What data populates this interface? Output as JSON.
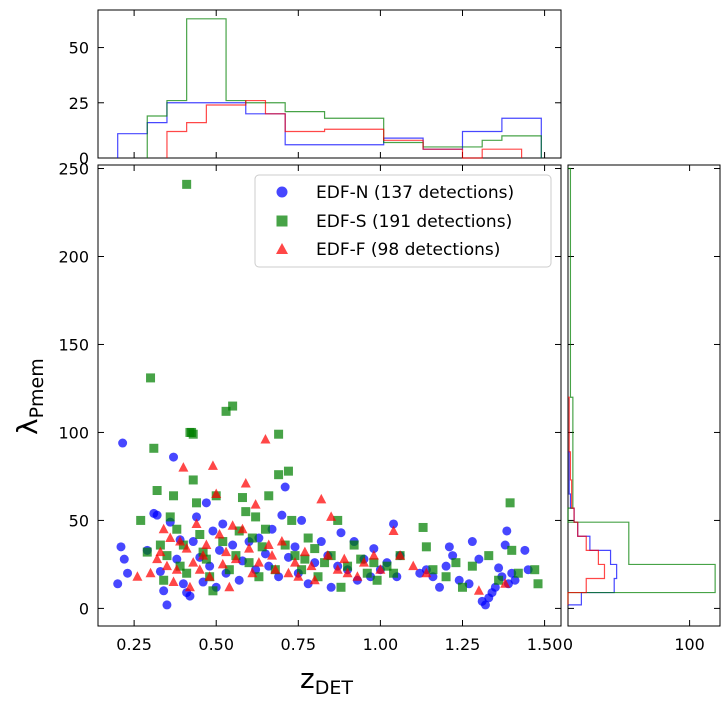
{
  "chart_data": {
    "type": "scatter",
    "xlabel": "z",
    "xlabel_sub": "DET",
    "ylabel": "λ",
    "ylabel_sub": "Pmem",
    "xlim": [
      0.14,
      1.55
    ],
    "ylim": [
      -10,
      252
    ],
    "xticks": [
      0.25,
      0.5,
      0.75,
      1.0,
      1.25,
      1.5
    ],
    "xtick_labels": [
      "0.25",
      "0.50",
      "0.75",
      "1.00",
      "1.25",
      "1.50"
    ],
    "yticks": [
      0,
      50,
      100,
      150,
      200,
      250
    ],
    "ytick_labels": [
      "0",
      "50",
      "100",
      "150",
      "200",
      "250"
    ],
    "legend_position": "top-right",
    "series": [
      {
        "name": "EDF-N (137 detections)",
        "color": "#0000ff",
        "marker": "circle",
        "points": [
          [
            0.2,
            14
          ],
          [
            0.21,
            35
          ],
          [
            0.215,
            94
          ],
          [
            0.22,
            28
          ],
          [
            0.23,
            20
          ],
          [
            0.29,
            33
          ],
          [
            0.31,
            54
          ],
          [
            0.32,
            53
          ],
          [
            0.33,
            21
          ],
          [
            0.34,
            10
          ],
          [
            0.35,
            2
          ],
          [
            0.36,
            49
          ],
          [
            0.37,
            86
          ],
          [
            0.38,
            28
          ],
          [
            0.39,
            39
          ],
          [
            0.4,
            14
          ],
          [
            0.41,
            9
          ],
          [
            0.42,
            7
          ],
          [
            0.43,
            38
          ],
          [
            0.44,
            52
          ],
          [
            0.45,
            29
          ],
          [
            0.46,
            15
          ],
          [
            0.47,
            60
          ],
          [
            0.48,
            24
          ],
          [
            0.49,
            44
          ],
          [
            0.5,
            12
          ],
          [
            0.51,
            33
          ],
          [
            0.52,
            48
          ],
          [
            0.53,
            20
          ],
          [
            0.55,
            36
          ],
          [
            0.57,
            16
          ],
          [
            0.58,
            27
          ],
          [
            0.6,
            38
          ],
          [
            0.62,
            22
          ],
          [
            0.63,
            40
          ],
          [
            0.65,
            31
          ],
          [
            0.66,
            24
          ],
          [
            0.67,
            45
          ],
          [
            0.69,
            18
          ],
          [
            0.7,
            53
          ],
          [
            0.71,
            69
          ],
          [
            0.72,
            29
          ],
          [
            0.74,
            35
          ],
          [
            0.75,
            20
          ],
          [
            0.76,
            50
          ],
          [
            0.78,
            14
          ],
          [
            0.8,
            26
          ],
          [
            0.82,
            38
          ],
          [
            0.84,
            30
          ],
          [
            0.85,
            12
          ],
          [
            0.87,
            24
          ],
          [
            0.88,
            43
          ],
          [
            0.9,
            22
          ],
          [
            0.92,
            38
          ],
          [
            0.93,
            16
          ],
          [
            0.95,
            28
          ],
          [
            0.97,
            18
          ],
          [
            0.98,
            34
          ],
          [
            1.0,
            22
          ],
          [
            1.02,
            26
          ],
          [
            1.04,
            48
          ],
          [
            1.05,
            18
          ],
          [
            1.06,
            30
          ],
          [
            1.12,
            20
          ],
          [
            1.14,
            22
          ],
          [
            1.16,
            18
          ],
          [
            1.18,
            12
          ],
          [
            1.2,
            24
          ],
          [
            1.21,
            35
          ],
          [
            1.22,
            30
          ],
          [
            1.24,
            16
          ],
          [
            1.27,
            14
          ],
          [
            1.28,
            38
          ],
          [
            1.3,
            28
          ],
          [
            1.31,
            4
          ],
          [
            1.32,
            2
          ],
          [
            1.33,
            6
          ],
          [
            1.34,
            9
          ],
          [
            1.35,
            12
          ],
          [
            1.36,
            23
          ],
          [
            1.37,
            18
          ],
          [
            1.38,
            36
          ],
          [
            1.385,
            44
          ],
          [
            1.39,
            14
          ],
          [
            1.4,
            20
          ],
          [
            1.41,
            16
          ],
          [
            1.44,
            33
          ],
          [
            1.45,
            22
          ]
        ]
      },
      {
        "name": "EDF-S (191 detections)",
        "color": "#008000",
        "marker": "square",
        "points": [
          [
            0.27,
            50
          ],
          [
            0.29,
            32
          ],
          [
            0.3,
            131
          ],
          [
            0.31,
            91
          ],
          [
            0.32,
            67
          ],
          [
            0.33,
            36
          ],
          [
            0.34,
            16
          ],
          [
            0.35,
            30
          ],
          [
            0.36,
            52
          ],
          [
            0.37,
            64
          ],
          [
            0.38,
            45
          ],
          [
            0.39,
            24
          ],
          [
            0.4,
            36
          ],
          [
            0.41,
            241
          ],
          [
            0.41,
            20
          ],
          [
            0.42,
            100
          ],
          [
            0.425,
            100
          ],
          [
            0.43,
            99
          ],
          [
            0.43,
            73
          ],
          [
            0.44,
            60
          ],
          [
            0.45,
            42
          ],
          [
            0.46,
            32
          ],
          [
            0.47,
            28
          ],
          [
            0.48,
            18
          ],
          [
            0.49,
            10
          ],
          [
            0.5,
            64
          ],
          [
            0.52,
            38
          ],
          [
            0.53,
            112
          ],
          [
            0.54,
            22
          ],
          [
            0.55,
            115
          ],
          [
            0.56,
            30
          ],
          [
            0.57,
            44
          ],
          [
            0.58,
            63
          ],
          [
            0.59,
            55
          ],
          [
            0.6,
            26
          ],
          [
            0.61,
            40
          ],
          [
            0.62,
            52
          ],
          [
            0.63,
            18
          ],
          [
            0.64,
            35
          ],
          [
            0.65,
            45
          ],
          [
            0.66,
            64
          ],
          [
            0.68,
            22
          ],
          [
            0.69,
            99
          ],
          [
            0.69,
            76
          ],
          [
            0.71,
            36
          ],
          [
            0.72,
            78
          ],
          [
            0.73,
            50
          ],
          [
            0.74,
            30
          ],
          [
            0.76,
            22
          ],
          [
            0.77,
            28
          ],
          [
            0.78,
            40
          ],
          [
            0.8,
            34
          ],
          [
            0.81,
            18
          ],
          [
            0.83,
            26
          ],
          [
            0.85,
            30
          ],
          [
            0.87,
            50
          ],
          [
            0.88,
            12
          ],
          [
            0.9,
            24
          ],
          [
            0.92,
            36
          ],
          [
            0.94,
            28
          ],
          [
            0.96,
            20
          ],
          [
            0.98,
            26
          ],
          [
            0.99,
            16
          ],
          [
            1.02,
            24
          ],
          [
            1.04,
            20
          ],
          [
            1.06,
            30
          ],
          [
            1.13,
            46
          ],
          [
            1.14,
            35
          ],
          [
            1.16,
            22
          ],
          [
            1.2,
            18
          ],
          [
            1.23,
            26
          ],
          [
            1.25,
            12
          ],
          [
            1.28,
            24
          ],
          [
            1.33,
            30
          ],
          [
            1.36,
            16
          ],
          [
            1.395,
            60
          ],
          [
            1.4,
            33
          ],
          [
            1.42,
            20
          ],
          [
            1.47,
            22
          ],
          [
            1.48,
            14
          ]
        ]
      },
      {
        "name": "EDF-F (98 detections)",
        "color": "#ff0000",
        "marker": "triangle",
        "points": [
          [
            0.26,
            18
          ],
          [
            0.3,
            20
          ],
          [
            0.32,
            28
          ],
          [
            0.33,
            32
          ],
          [
            0.34,
            45
          ],
          [
            0.35,
            24
          ],
          [
            0.36,
            40
          ],
          [
            0.37,
            15
          ],
          [
            0.38,
            22
          ],
          [
            0.39,
            38
          ],
          [
            0.4,
            80
          ],
          [
            0.41,
            34
          ],
          [
            0.42,
            12
          ],
          [
            0.43,
            26
          ],
          [
            0.44,
            48
          ],
          [
            0.45,
            22
          ],
          [
            0.46,
            30
          ],
          [
            0.47,
            36
          ],
          [
            0.48,
            18
          ],
          [
            0.49,
            81
          ],
          [
            0.5,
            65
          ],
          [
            0.51,
            42
          ],
          [
            0.52,
            25
          ],
          [
            0.53,
            32
          ],
          [
            0.54,
            12
          ],
          [
            0.55,
            47
          ],
          [
            0.56,
            28
          ],
          [
            0.58,
            45
          ],
          [
            0.59,
            71
          ],
          [
            0.6,
            34
          ],
          [
            0.61,
            20
          ],
          [
            0.62,
            59
          ],
          [
            0.63,
            26
          ],
          [
            0.65,
            96
          ],
          [
            0.66,
            36
          ],
          [
            0.67,
            30
          ],
          [
            0.68,
            22
          ],
          [
            0.7,
            38
          ],
          [
            0.72,
            20
          ],
          [
            0.74,
            26
          ],
          [
            0.75,
            18
          ],
          [
            0.77,
            32
          ],
          [
            0.79,
            24
          ],
          [
            0.8,
            16
          ],
          [
            0.82,
            62
          ],
          [
            0.84,
            30
          ],
          [
            0.85,
            52
          ],
          [
            0.87,
            22
          ],
          [
            0.89,
            28
          ],
          [
            0.9,
            20
          ],
          [
            0.93,
            18
          ],
          [
            0.95,
            26
          ],
          [
            0.98,
            30
          ],
          [
            1.0,
            22
          ],
          [
            1.04,
            44
          ],
          [
            1.06,
            30
          ],
          [
            1.1,
            24
          ],
          [
            1.14,
            20
          ],
          [
            1.3,
            10
          ],
          [
            1.38,
            14
          ]
        ]
      }
    ],
    "top_histogram": {
      "yticks": [
        0,
        25,
        50
      ],
      "ytick_labels": [
        "0",
        "25",
        "50"
      ],
      "ylim": [
        0,
        67
      ],
      "bins": [
        0.2,
        0.29,
        0.35,
        0.41,
        0.47,
        0.53,
        0.59,
        0.65,
        0.71,
        0.77,
        0.83,
        0.89,
        0.95,
        1.01,
        1.07,
        1.13,
        1.19,
        1.25,
        1.31,
        1.37,
        1.43,
        1.49
      ],
      "counts": {
        "EDF-N (137 detections)": [
          11,
          16,
          25,
          25,
          25,
          25,
          20,
          20,
          6,
          6,
          6,
          6,
          6,
          9,
          9,
          4,
          4,
          12,
          12,
          18,
          18
        ],
        "EDF-S (191 detections)": [
          0,
          19,
          26,
          63,
          63,
          26,
          25,
          25,
          21,
          21,
          18,
          18,
          18,
          7,
          7,
          5,
          5,
          5,
          8,
          10,
          10
        ],
        "EDF-F (98 detections)": [
          0,
          0,
          12,
          16,
          24,
          24,
          26,
          20,
          12,
          12,
          13,
          13,
          13,
          8,
          8,
          4,
          4,
          0,
          4,
          4,
          0
        ]
      }
    },
    "right_histogram": {
      "xticks": [
        0,
        100
      ],
      "xtick_labels": [
        "0",
        "100"
      ],
      "xlim": [
        0,
        125
      ],
      "bins": [
        2,
        9,
        17,
        25,
        33,
        41,
        49,
        57,
        65,
        73,
        81,
        89,
        97,
        120,
        140,
        160,
        180,
        200,
        220,
        240,
        250
      ],
      "counts": {
        "EDF-N (137 detections)": [
          11,
          38,
          40,
          35,
          18,
          8,
          5,
          2,
          1,
          1,
          1,
          0,
          0,
          0,
          0,
          0,
          0,
          0,
          0,
          0
        ],
        "EDF-S (191 detections)": [
          0,
          121,
          121,
          50,
          50,
          50,
          0,
          4,
          4,
          4,
          4,
          4,
          4,
          2,
          2,
          2,
          2,
          2,
          2,
          2
        ],
        "EDF-F (98 detections)": [
          0,
          15,
          30,
          25,
          15,
          8,
          5,
          3,
          3,
          2,
          2,
          1,
          1,
          0,
          0,
          0,
          0,
          0,
          0,
          0
        ]
      }
    }
  }
}
